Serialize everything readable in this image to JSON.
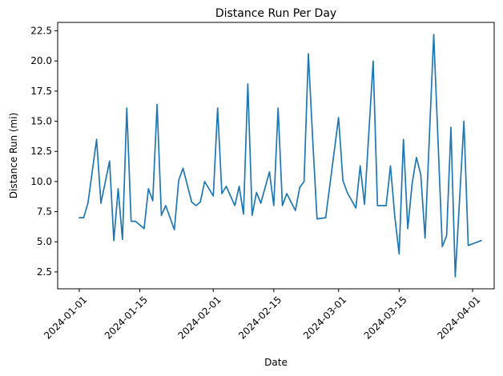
{
  "chart_data": {
    "type": "line",
    "title": "Distance Run Per Day",
    "xlabel": "Date",
    "ylabel": "Distance Run (mi)",
    "xlim": [
      "2023-12-27",
      "2024-04-06"
    ],
    "ylim": [
      1.1,
      23.2
    ],
    "grid": false,
    "legend": "none",
    "x_ticks": [
      "2024-01-01",
      "2024-01-15",
      "2024-02-01",
      "2024-02-15",
      "2024-03-01",
      "2024-03-15",
      "2024-04-01"
    ],
    "y_ticks": [
      "2.5",
      "5.0",
      "7.5",
      "10.0",
      "12.5",
      "15.0",
      "17.5",
      "20.0",
      "22.5"
    ],
    "series": [
      {
        "color": "#1f77b4",
        "x": [
          "2024-01-01",
          "2024-01-02",
          "2024-01-03",
          "2024-01-05",
          "2024-01-06",
          "2024-01-08",
          "2024-01-09",
          "2024-01-10",
          "2024-01-11",
          "2024-01-12",
          "2024-01-13",
          "2024-01-14",
          "2024-01-16",
          "2024-01-17",
          "2024-01-18",
          "2024-01-19",
          "2024-01-20",
          "2024-01-21",
          "2024-01-23",
          "2024-01-24",
          "2024-01-25",
          "2024-01-27",
          "2024-01-28",
          "2024-01-29",
          "2024-01-30",
          "2024-02-01",
          "2024-02-02",
          "2024-02-03",
          "2024-02-04",
          "2024-02-06",
          "2024-02-07",
          "2024-02-08",
          "2024-02-09",
          "2024-02-10",
          "2024-02-11",
          "2024-02-12",
          "2024-02-14",
          "2024-02-15",
          "2024-02-16",
          "2024-02-17",
          "2024-02-18",
          "2024-02-20",
          "2024-02-21",
          "2024-02-22",
          "2024-02-23",
          "2024-02-24",
          "2024-02-25",
          "2024-02-27",
          "2024-03-01",
          "2024-03-02",
          "2024-03-03",
          "2024-03-05",
          "2024-03-06",
          "2024-03-07",
          "2024-03-09",
          "2024-03-10",
          "2024-03-12",
          "2024-03-13",
          "2024-03-14",
          "2024-03-15",
          "2024-03-16",
          "2024-03-17",
          "2024-03-18",
          "2024-03-19",
          "2024-03-20",
          "2024-03-21",
          "2024-03-23",
          "2024-03-25",
          "2024-03-26",
          "2024-03-27",
          "2024-03-28",
          "2024-03-30",
          "2024-03-31",
          "2024-04-03"
        ],
        "values": [
          7.0,
          7.0,
          8.2,
          13.5,
          8.2,
          11.7,
          5.1,
          9.4,
          5.2,
          16.1,
          6.7,
          6.7,
          6.1,
          9.4,
          8.4,
          16.4,
          7.2,
          8.0,
          6.0,
          10.1,
          11.1,
          8.3,
          8.0,
          8.3,
          10.0,
          8.8,
          16.1,
          9.0,
          9.6,
          8.0,
          9.6,
          7.3,
          18.1,
          7.2,
          9.1,
          8.2,
          10.8,
          8.0,
          16.1,
          8.0,
          9.0,
          7.6,
          9.5,
          10.0,
          20.6,
          13.5,
          6.9,
          7.0,
          15.3,
          10.1,
          9.1,
          7.8,
          11.3,
          8.1,
          20.0,
          8.0,
          8.0,
          11.3,
          7.1,
          4.0,
          13.5,
          6.1,
          9.8,
          12.0,
          10.6,
          5.3,
          22.2,
          4.6,
          5.5,
          14.5,
          2.1,
          15.0,
          4.7,
          5.1
        ]
      }
    ]
  }
}
